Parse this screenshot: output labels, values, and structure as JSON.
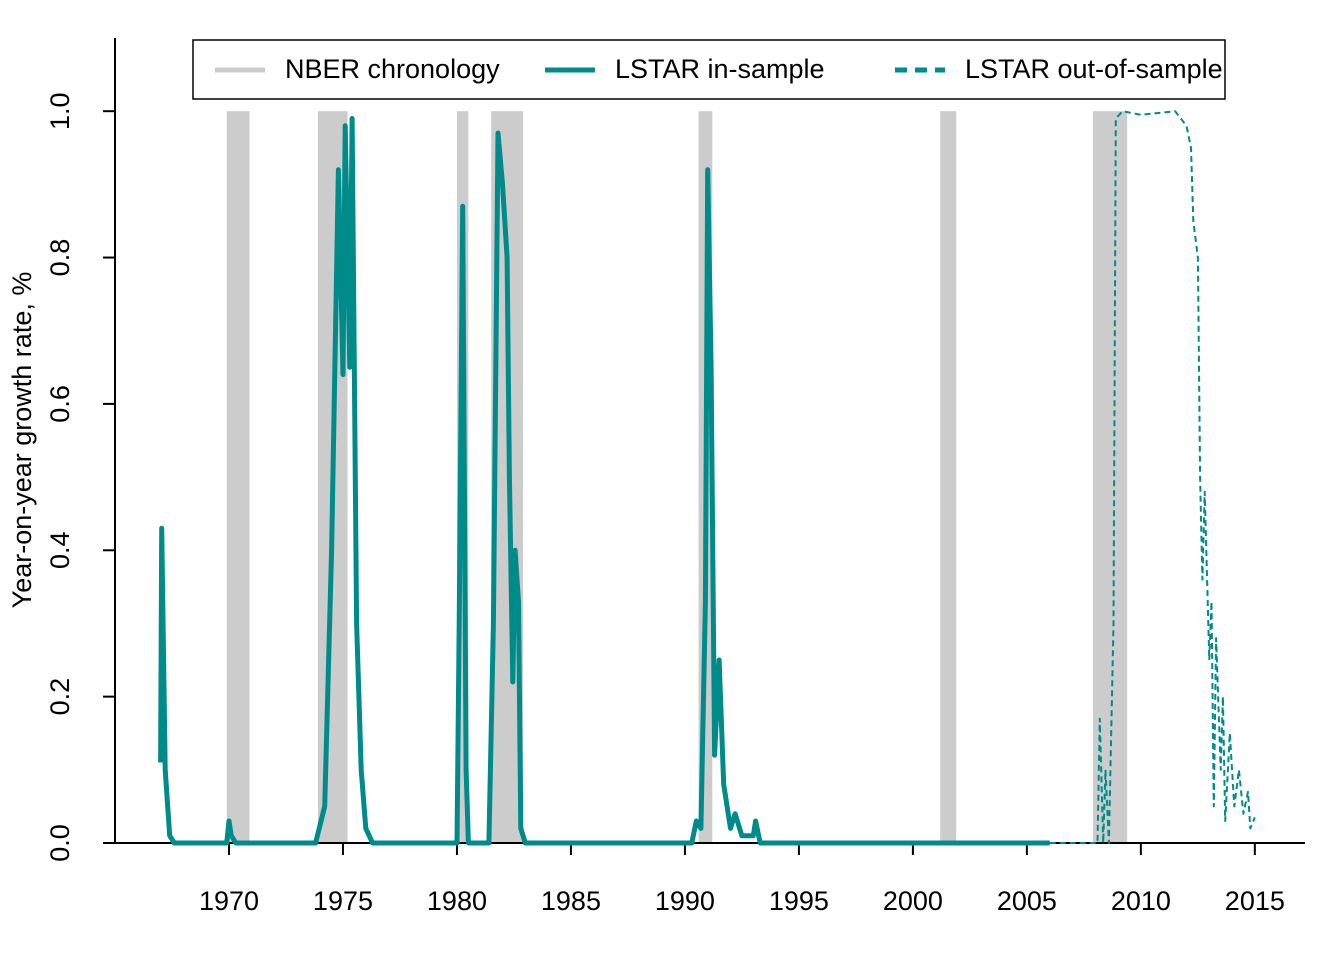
{
  "chart_data": {
    "type": "line",
    "y_label": "Year-on-year growth rate, %",
    "xlim": [
      1965,
      2017.2
    ],
    "xticks": [
      1970,
      1975,
      1980,
      1985,
      1990,
      1995,
      2000,
      2005,
      2010,
      2015
    ],
    "ylim": [
      0,
      1.1
    ],
    "yticks": [
      {
        "value": 0,
        "label": "0.0"
      },
      0.2,
      0.4,
      0.6,
      0.8,
      {
        "value": 1,
        "label": "1.0"
      }
    ],
    "legend_position": "top",
    "recessions": {
      "name": "NBER chronology",
      "color": "#cccccc",
      "periods": [
        [
          1969.9,
          1970.9
        ],
        [
          1973.9,
          1975.2
        ],
        [
          1980.0,
          1980.5
        ],
        [
          1981.5,
          1982.9
        ],
        [
          1990.6,
          1991.2
        ],
        [
          2001.2,
          2001.9
        ],
        [
          2007.9,
          2009.4
        ]
      ]
    },
    "series": [
      {
        "name": "LSTAR in-sample",
        "color": "#008b8b",
        "linestyle": "solid",
        "linewidth": 5,
        "x": [
          1967.0,
          1967.05,
          1967.2,
          1967.4,
          1967.6,
          1968,
          1969.9,
          1970.0,
          1970.1,
          1970.3,
          1973.8,
          1974.2,
          1974.5,
          1974.8,
          1975.0,
          1975.1,
          1975.3,
          1975.4,
          1975.6,
          1975.8,
          1976.0,
          1976.3,
          1980.0,
          1980.1,
          1980.25,
          1980.4,
          1980.5,
          1981.4,
          1981.6,
          1981.8,
          1982.0,
          1982.2,
          1982.3,
          1982.45,
          1982.55,
          1982.7,
          1982.8,
          1983.0,
          1990.3,
          1990.5,
          1990.7,
          1990.9,
          1991.0,
          1991.15,
          1991.3,
          1991.5,
          1991.7,
          1992.0,
          1992.2,
          1992.5,
          1993.0,
          1993.1,
          1993.3,
          2006.0
        ],
        "values": [
          0.11,
          0.43,
          0.1,
          0.01,
          0.0,
          0.0,
          0.0,
          0.03,
          0.01,
          0.0,
          0.0,
          0.05,
          0.4,
          0.92,
          0.64,
          0.98,
          0.65,
          0.99,
          0.3,
          0.1,
          0.02,
          0.0,
          0.0,
          0.3,
          0.87,
          0.1,
          0.0,
          0.0,
          0.3,
          0.97,
          0.9,
          0.8,
          0.5,
          0.22,
          0.4,
          0.33,
          0.02,
          0.0,
          0.0,
          0.03,
          0.02,
          0.33,
          0.92,
          0.65,
          0.12,
          0.25,
          0.08,
          0.02,
          0.04,
          0.01,
          0.01,
          0.03,
          0.0,
          0.0
        ]
      },
      {
        "name": "LSTAR out-of-sample",
        "color": "#008b8b",
        "linestyle": "dashed",
        "linewidth": 2,
        "x": [
          2006.0,
          2007.5,
          2008.1,
          2008.2,
          2008.35,
          2008.45,
          2008.6,
          2008.8,
          2008.9,
          2009.2,
          2010,
          2011.5,
          2012.0,
          2012.2,
          2012.3,
          2012.5,
          2012.6,
          2012.7,
          2012.8,
          2013.0,
          2013.1,
          2013.2,
          2013.3,
          2013.5,
          2013.6,
          2013.7,
          2013.9,
          2014.1,
          2014.3,
          2014.5,
          2014.7,
          2014.8,
          2015.0
        ],
        "values": [
          0.0,
          0.0,
          0.0,
          0.17,
          0.0,
          0.1,
          0.0,
          0.3,
          0.99,
          1.0,
          0.995,
          1.0,
          0.98,
          0.95,
          0.85,
          0.8,
          0.5,
          0.36,
          0.48,
          0.25,
          0.33,
          0.05,
          0.28,
          0.1,
          0.2,
          0.03,
          0.15,
          0.05,
          0.1,
          0.04,
          0.07,
          0.02,
          0.035
        ]
      }
    ]
  }
}
